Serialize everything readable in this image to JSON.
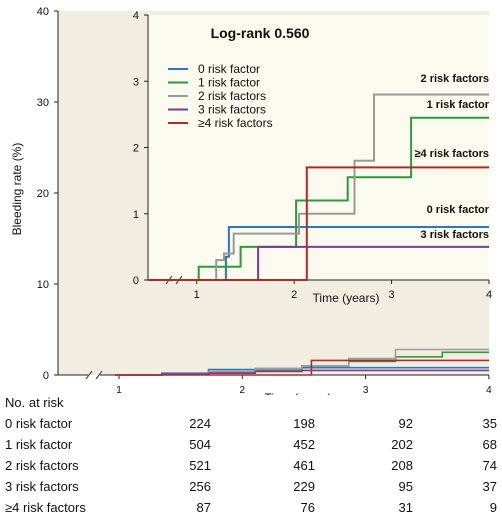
{
  "chart_data": [
    {
      "type": "line",
      "step": true,
      "ylabel": "Bleeding rate (%)",
      "xlabel": "Time (years)",
      "ylim": [
        0,
        40
      ],
      "yticks": [
        "0",
        "10",
        "20",
        "30",
        "40"
      ],
      "xlim": [
        0,
        4
      ],
      "xticks": [
        "1",
        "2",
        "3",
        "4"
      ],
      "axis_break": true,
      "background": "#f1eee1",
      "series": [
        {
          "name": "0 risk factor",
          "color": "#2b76bd",
          "x": [
            0,
            0.5,
            1,
            1.5,
            2,
            3,
            4
          ],
          "y": [
            0,
            0.2,
            0.6,
            0.7,
            0.8,
            0.8,
            0.8
          ]
        },
        {
          "name": "1 risk factor",
          "color": "#2e9a3a",
          "x": [
            0,
            0.5,
            1,
            1.5,
            2,
            2.5,
            3,
            3.5,
            4
          ],
          "y": [
            0,
            0.1,
            0.3,
            0.5,
            1.0,
            1.5,
            2.0,
            2.5,
            2.5
          ]
        },
        {
          "name": "2 risk factors",
          "color": "#9a9a9a",
          "x": [
            0,
            0.5,
            1,
            1.5,
            2,
            2.5,
            3,
            4
          ],
          "y": [
            0,
            0.1,
            0.4,
            0.7,
            1.0,
            1.8,
            2.8,
            2.8
          ]
        },
        {
          "name": "3 risk factors",
          "color": "#7b3a96",
          "x": [
            0,
            0.5,
            1,
            1.5,
            2,
            3,
            4
          ],
          "y": [
            0,
            0.1,
            0.2,
            0.4,
            0.5,
            0.5,
            0.5
          ]
        },
        {
          "name": "≥4 risk factors",
          "color": "#b02a2a",
          "x": [
            0,
            2,
            2.1,
            3,
            4
          ],
          "y": [
            0,
            0,
            1.6,
            1.6,
            1.6
          ]
        }
      ]
    },
    {
      "type": "line",
      "step": true,
      "inset": true,
      "title": "Log-rank 0.560",
      "xlabel": "Time (years)",
      "ylim": [
        0,
        4
      ],
      "yticks": [
        "0",
        "1",
        "2",
        "3",
        "4"
      ],
      "xlim": [
        0.5,
        4
      ],
      "xticks": [
        "1",
        "2",
        "3",
        "4"
      ],
      "axis_break": true,
      "legend_position": "upper-left",
      "background": "#fafaee",
      "end_labels": [
        "2 risk factors",
        "1 risk factor",
        "≥4 risk factors",
        "0 risk factor",
        "3 risk factors"
      ],
      "series": [
        {
          "name": "0 risk factor",
          "color": "#2b76bd",
          "x": [
            0.5,
            1.25,
            1.3,
            1.33,
            4
          ],
          "y": [
            0,
            0,
            0.35,
            0.8,
            0.8
          ]
        },
        {
          "name": "1 risk factor",
          "color": "#2e9a3a",
          "x": [
            0.5,
            1.02,
            1.35,
            1.45,
            1.97,
            2.02,
            2.55,
            3.2,
            4
          ],
          "y": [
            0,
            0.2,
            0.2,
            0.5,
            0.5,
            1.2,
            1.55,
            2.45,
            2.45
          ]
        },
        {
          "name": "2 risk factors",
          "color": "#9a9a9a",
          "x": [
            0.5,
            1.2,
            1.28,
            1.38,
            1.97,
            2.05,
            2.62,
            2.82,
            4
          ],
          "y": [
            0,
            0.3,
            0.4,
            0.7,
            0.7,
            1.0,
            1.8,
            2.8,
            2.8
          ]
        },
        {
          "name": "3 risk factors",
          "color": "#7b3a96",
          "x": [
            0.5,
            1.63,
            4
          ],
          "y": [
            0,
            0.5,
            0.5
          ]
        },
        {
          "name": "≥4 risk factors",
          "color": "#b02a2a",
          "x": [
            0.5,
            2.13,
            4
          ],
          "y": [
            0,
            1.7,
            1.7
          ]
        }
      ]
    }
  ],
  "risk_table": {
    "title": "No. at risk",
    "rows": [
      {
        "label": "0 risk factor",
        "values": [
          "224",
          "198",
          "92",
          "35"
        ]
      },
      {
        "label": "1 risk factor",
        "values": [
          "504",
          "452",
          "202",
          "68"
        ]
      },
      {
        "label": "2 risk factors",
        "values": [
          "521",
          "461",
          "208",
          "74"
        ]
      },
      {
        "label": "3 risk factors",
        "values": [
          "256",
          "229",
          "95",
          "37"
        ]
      },
      {
        "label": "≥4 risk factors",
        "values": [
          "87",
          "76",
          "31",
          "9"
        ]
      }
    ]
  }
}
